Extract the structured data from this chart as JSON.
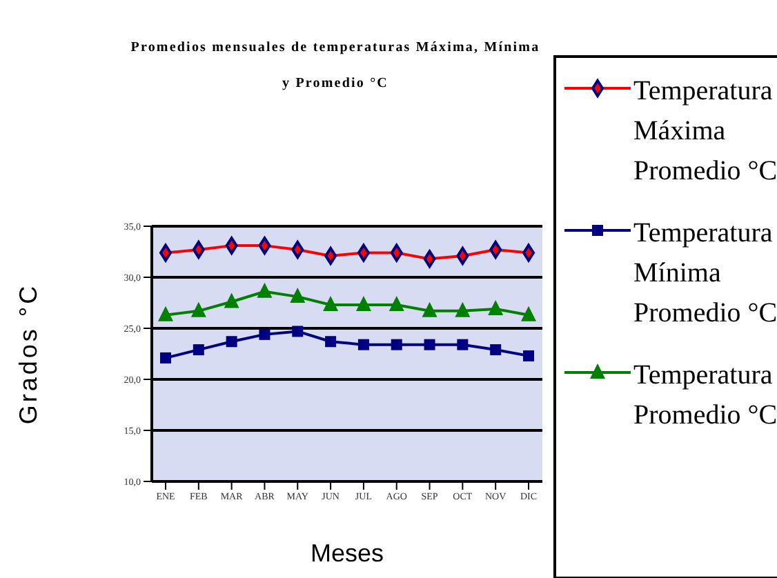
{
  "chart_data": {
    "type": "line",
    "title": "Promedios mensuales de temperaturas Máxima, Mínima y Promedio °C",
    "xlabel": "Meses",
    "ylabel": "Grados °C",
    "categories": [
      "ENE",
      "FEB",
      "MAR",
      "ABR",
      "MAY",
      "JUN",
      "JUL",
      "AGO",
      "SEP",
      "OCT",
      "NOV",
      "DIC"
    ],
    "series": [
      {
        "name": "Temperatura Máxima Promedio °C",
        "color": "#ff0000",
        "marker": "diamond",
        "values": [
          32.4,
          32.7,
          33.1,
          33.1,
          32.7,
          32.1,
          32.4,
          32.4,
          31.8,
          32.1,
          32.7,
          32.4
        ]
      },
      {
        "name": "Temperatura Mínima Promedio °C",
        "color": "#000080",
        "marker": "square",
        "values": [
          22.1,
          22.9,
          23.7,
          24.4,
          24.7,
          23.7,
          23.4,
          23.4,
          23.4,
          23.4,
          22.9,
          22.3
        ]
      },
      {
        "name": "Temperatura Promedio °C",
        "color": "#008000",
        "marker": "triangle",
        "values": [
          26.3,
          26.7,
          27.6,
          28.6,
          28.1,
          27.3,
          27.3,
          27.3,
          26.7,
          26.7,
          26.9,
          26.3
        ]
      }
    ],
    "ylim": [
      10,
      35
    ],
    "yticks": [
      {
        "value": 10,
        "label": "10,0"
      },
      {
        "value": 15,
        "label": "15,0"
      },
      {
        "value": 20,
        "label": "20,0"
      },
      {
        "value": 25,
        "label": "25,0"
      },
      {
        "value": 30,
        "label": "30,0"
      },
      {
        "value": 35,
        "label": "35,0"
      }
    ],
    "grid": "y",
    "legend": "right"
  }
}
